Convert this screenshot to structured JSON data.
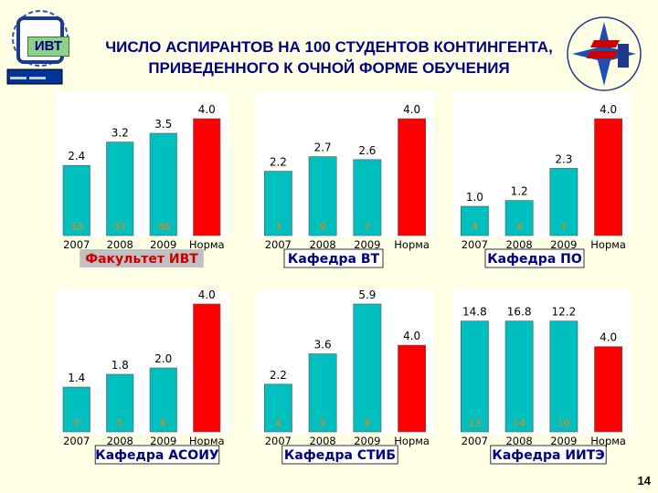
{
  "header": {
    "title_line1": "ЧИСЛО АСПИРАНТОВ НА 100 СТУДЕНТОВ КОНТИНГЕНТА,",
    "title_line2": "ПРИВЕДЕННОГО К ОЧНОЙ ФОРМЕ ОБУЧЕНИЯ",
    "badge": "ИВТ"
  },
  "page_number": "14",
  "colors": {
    "bar": "#00BFBF",
    "norm_bar": "#FF0000",
    "panel_bg": "#FFFFFF",
    "page_bg": "#FFFFE6",
    "caption_blue": "#000080",
    "caption_red": "#CC0000",
    "bottom_label": "#FF8000"
  },
  "chart_data": [
    {
      "type": "bar",
      "categories": [
        "2007",
        "2008",
        "2009",
        "Норма"
      ],
      "values": [
        2.4,
        3.2,
        3.5,
        4.0
      ],
      "value_labels": [
        "2.4",
        "3.2",
        "3.5",
        "4.0"
      ],
      "bottom_labels": [
        "33",
        "37",
        "38",
        ""
      ],
      "caption": "Факультет ИВТ"
    },
    {
      "type": "bar",
      "categories": [
        "2007",
        "2008",
        "2009",
        "Норма"
      ],
      "values": [
        2.2,
        2.7,
        2.6,
        4.0
      ],
      "value_labels": [
        "2.2",
        "2.7",
        "2.6",
        "4.0"
      ],
      "bottom_labels": [
        "7",
        "9",
        "7",
        ""
      ],
      "caption": "Кафедра ВТ"
    },
    {
      "type": "bar",
      "categories": [
        "2007",
        "2008",
        "2009",
        "Норма"
      ],
      "values": [
        1.0,
        1.2,
        2.3,
        4.0
      ],
      "value_labels": [
        "1.0",
        "1.2",
        "2.3",
        "4.0"
      ],
      "bottom_labels": [
        "4",
        "4",
        "7",
        ""
      ],
      "caption": "Кафедра ПО"
    },
    {
      "type": "bar",
      "categories": [
        "2007",
        "2008",
        "2009",
        "Норма"
      ],
      "values": [
        1.4,
        1.8,
        2.0,
        4.0
      ],
      "value_labels": [
        "1.4",
        "1.8",
        "2.0",
        "4.0"
      ],
      "bottom_labels": [
        "5",
        "5",
        "6",
        ""
      ],
      "caption": "Кафедра АСОИУ"
    },
    {
      "type": "bar",
      "categories": [
        "2007",
        "2008",
        "2009",
        "Норма"
      ],
      "values": [
        2.2,
        3.6,
        5.9,
        4.0
      ],
      "value_labels": [
        "2.2",
        "3.6",
        "5.9",
        "4.0"
      ],
      "bottom_labels": [
        "4",
        "5",
        "8",
        ""
      ],
      "caption": "Кафедра СТИБ"
    },
    {
      "type": "bar",
      "categories": [
        "2007",
        "2008",
        "2009",
        "Норма"
      ],
      "values": [
        14.8,
        16.8,
        12.2,
        4.0
      ],
      "value_labels": [
        "14.8",
        "16.8",
        "12.2",
        "4.0"
      ],
      "bottom_labels": [
        "13",
        "14",
        "10",
        ""
      ],
      "caption": "Кафедра ИИТЭ"
    }
  ]
}
